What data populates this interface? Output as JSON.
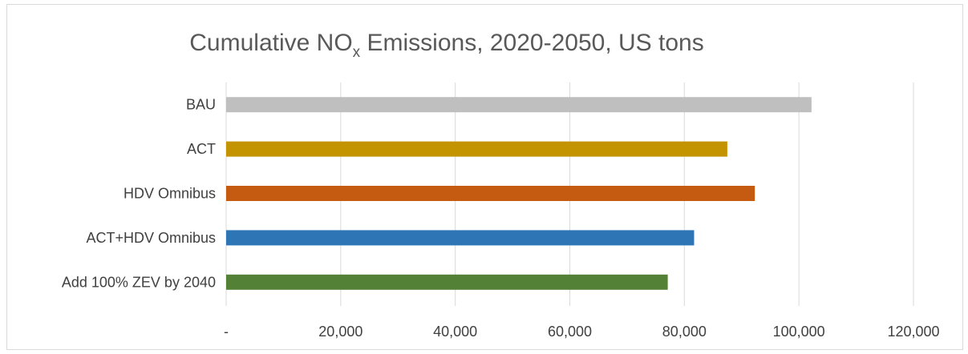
{
  "chart_data": {
    "type": "bar",
    "orientation": "horizontal",
    "title": {
      "main": "Cumulative NO",
      "subscript": "x",
      "suffix": " Emissions, 2020-2050, US tons"
    },
    "xlabel": "",
    "ylabel": "",
    "categories": [
      "BAU",
      "ACT",
      "HDV Omnibus",
      "ACT+HDV Omnibus",
      "Add 100% ZEV by 2040"
    ],
    "values": [
      102200,
      87500,
      92300,
      81700,
      77100
    ],
    "colors": [
      "#bfbfbf",
      "#c49400",
      "#c55a11",
      "#2e75b6",
      "#538135"
    ],
    "xlim": [
      0,
      120000
    ],
    "ticks": [
      0,
      20000,
      40000,
      60000,
      80000,
      100000,
      120000
    ],
    "tick_labels": [
      "-",
      "20,000",
      "40,000",
      "60,000",
      "80,000",
      "100,000",
      "120,000"
    ],
    "grid": true,
    "legend": "none"
  }
}
